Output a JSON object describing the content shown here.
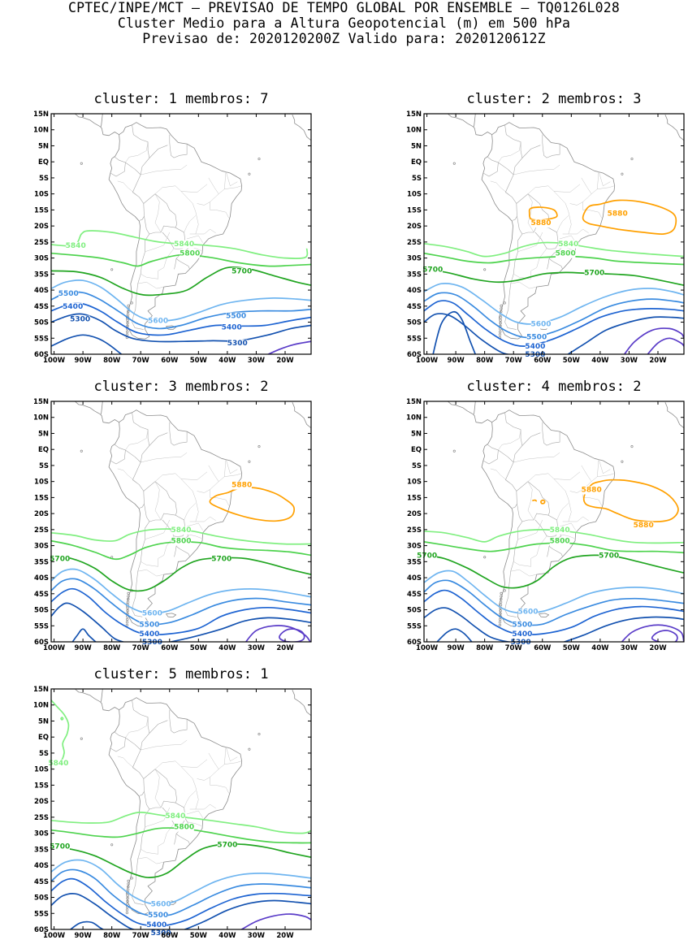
{
  "header": {
    "line1": "CPTEC/INPE/MCT — PREVISAO DE TEMPO GLOBAL POR ENSEMBLE — TQ0126L028",
    "line2": "Cluster Medio para a Altura Geopotencial (m) em 500 hPa",
    "line3": "Previsao de: 2020120200Z   Valido para: 2020120612Z"
  },
  "axes": {
    "lat_ticks": [
      "15N",
      "10N",
      "5N",
      "EQ",
      "5S",
      "10S",
      "15S",
      "20S",
      "25S",
      "30S",
      "35S",
      "40S",
      "45S",
      "50S",
      "55S",
      "60S"
    ],
    "lon_ticks": [
      "100W",
      "90W",
      "80W",
      "70W",
      "60W",
      "50W",
      "40W",
      "30W",
      "20W"
    ],
    "lat_range": [
      -60,
      15
    ],
    "lon_range": [
      -101,
      -11
    ]
  },
  "colors": {
    "c5880": "#ffa000",
    "c5840": "#80ef80",
    "c5800": "#4ed34e",
    "c5700": "#21a521",
    "c5600": "#6fb5f0",
    "c5500": "#3a8be0",
    "c5400": "#1e64d2",
    "c5300": "#1452b0",
    "c5200": "#5a3cc8",
    "coast": "#8c8c8c"
  },
  "panels": [
    {
      "id": "1",
      "title_prefix": "cluster:",
      "number": "1",
      "members_label": "membros:",
      "members": "7",
      "labels": [
        {
          "text": "5840",
          "lon": -92.5,
          "lat": -26,
          "color": "c5840"
        },
        {
          "text": "5840",
          "lon": -55,
          "lat": -25.5,
          "color": "c5840"
        },
        {
          "text": "5800",
          "lon": -53,
          "lat": -28.5,
          "color": "c5800"
        },
        {
          "text": "5700",
          "lon": -35,
          "lat": -34,
          "color": "c5700"
        },
        {
          "text": "5500",
          "lon": -95,
          "lat": -41,
          "color": "c5500"
        },
        {
          "text": "5400",
          "lon": -93.5,
          "lat": -45,
          "color": "c5400"
        },
        {
          "text": "5300",
          "lon": -91,
          "lat": -49,
          "color": "c5300"
        },
        {
          "text": "5600",
          "lon": -64,
          "lat": -49.5,
          "color": "c5600"
        },
        {
          "text": "5500",
          "lon": -37,
          "lat": -48,
          "color": "c5500"
        },
        {
          "text": "5400",
          "lon": -38.5,
          "lat": -51.5,
          "color": "c5400"
        },
        {
          "text": "5300",
          "lon": -36.5,
          "lat": -56.5,
          "color": "c5300"
        }
      ]
    },
    {
      "id": "2",
      "title_prefix": "cluster:",
      "number": "2",
      "members_label": "membros:",
      "members": "3",
      "labels": [
        {
          "text": "5880",
          "lon": -60.5,
          "lat": -19,
          "color": "c5880"
        },
        {
          "text": "5880",
          "lon": -34,
          "lat": -16,
          "color": "c5880"
        },
        {
          "text": "5840",
          "lon": -51,
          "lat": -25.5,
          "color": "c5840"
        },
        {
          "text": "5800",
          "lon": -52,
          "lat": -28.5,
          "color": "c5800"
        },
        {
          "text": "5700",
          "lon": -98,
          "lat": -33.5,
          "color": "c5700"
        },
        {
          "text": "5700",
          "lon": -42,
          "lat": -34.5,
          "color": "c5700"
        },
        {
          "text": "5600",
          "lon": -60.5,
          "lat": -50.5,
          "color": "c5600"
        },
        {
          "text": "5500",
          "lon": -62,
          "lat": -54.5,
          "color": "c5500"
        },
        {
          "text": "5400",
          "lon": -62.5,
          "lat": -57.5,
          "color": "c5400"
        },
        {
          "text": "5300",
          "lon": -62.5,
          "lat": -60,
          "color": "c5300"
        }
      ]
    },
    {
      "id": "3",
      "title_prefix": "cluster:",
      "number": "3",
      "members_label": "membros:",
      "members": "2",
      "labels": [
        {
          "text": "5880",
          "lon": -35,
          "lat": -11,
          "color": "c5880"
        },
        {
          "text": "5840",
          "lon": -56,
          "lat": -25,
          "color": "c5840"
        },
        {
          "text": "5800",
          "lon": -56,
          "lat": -28.5,
          "color": "c5800"
        },
        {
          "text": "5700",
          "lon": -98,
          "lat": -34,
          "color": "c5700"
        },
        {
          "text": "5700",
          "lon": -42,
          "lat": -34,
          "color": "c5700"
        },
        {
          "text": "5600",
          "lon": -66,
          "lat": -51,
          "color": "c5600"
        },
        {
          "text": "5500",
          "lon": -67,
          "lat": -54.5,
          "color": "c5500"
        },
        {
          "text": "5400",
          "lon": -67,
          "lat": -57.5,
          "color": "c5400"
        },
        {
          "text": "5300",
          "lon": -66,
          "lat": -60,
          "color": "c5300"
        }
      ]
    },
    {
      "id": "4",
      "title_prefix": "cluster:",
      "number": "4",
      "members_label": "membros:",
      "members": "2",
      "labels": [
        {
          "text": "5880",
          "lon": -43,
          "lat": -12.5,
          "color": "c5880"
        },
        {
          "text": "5880",
          "lon": -25,
          "lat": -23.5,
          "color": "c5880"
        },
        {
          "text": "5840",
          "lon": -54,
          "lat": -25,
          "color": "c5840"
        },
        {
          "text": "5800",
          "lon": -54,
          "lat": -28.5,
          "color": "c5800"
        },
        {
          "text": "5700",
          "lon": -100,
          "lat": -33,
          "color": "c5700"
        },
        {
          "text": "5700",
          "lon": -37,
          "lat": -33,
          "color": "c5700"
        },
        {
          "text": "5600",
          "lon": -65,
          "lat": -50.5,
          "color": "c5600"
        },
        {
          "text": "5500",
          "lon": -67,
          "lat": -54.5,
          "color": "c5500"
        },
        {
          "text": "5400",
          "lon": -67,
          "lat": -57.5,
          "color": "c5400"
        },
        {
          "text": "5300",
          "lon": -67.5,
          "lat": -60,
          "color": "c5300"
        }
      ]
    },
    {
      "id": "5",
      "title_prefix": "cluster:",
      "number": "5",
      "members_label": "membros:",
      "members": "1",
      "labels": [
        {
          "text": "5840",
          "lon": -98.5,
          "lat": -8,
          "color": "c5840"
        },
        {
          "text": "5840",
          "lon": -58,
          "lat": -24.5,
          "color": "c5840"
        },
        {
          "text": "5800",
          "lon": -55,
          "lat": -28,
          "color": "c5800"
        },
        {
          "text": "5700",
          "lon": -98,
          "lat": -34,
          "color": "c5700"
        },
        {
          "text": "5700",
          "lon": -40,
          "lat": -33.5,
          "color": "c5700"
        },
        {
          "text": "5600",
          "lon": -63,
          "lat": -52,
          "color": "c5600"
        },
        {
          "text": "5500",
          "lon": -64,
          "lat": -55.5,
          "color": "c5500"
        },
        {
          "text": "5400",
          "lon": -64.5,
          "lat": -58.5,
          "color": "c5400"
        },
        {
          "text": "5300",
          "lon": -63,
          "lat": -61,
          "color": "c5300"
        }
      ]
    }
  ]
}
